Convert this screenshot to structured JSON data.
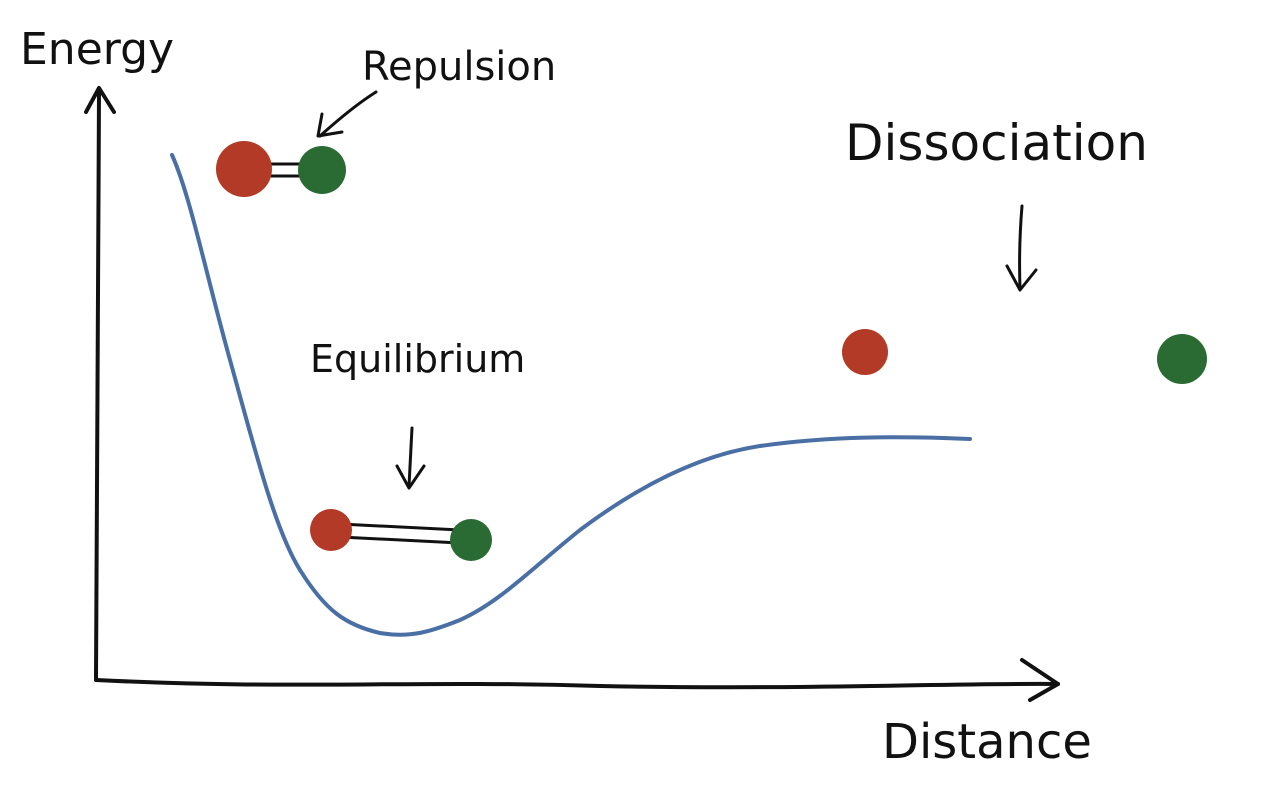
{
  "labels": {
    "y_axis": "Energy",
    "x_axis": "Distance",
    "repulsion": "Repulsion",
    "equilibrium": "Equilibrium",
    "dissociation": "Dissociation"
  },
  "colors": {
    "curve": "#4a6fa5",
    "atom_a": "#b23a26",
    "atom_b": "#2a6a33",
    "ink": "#111111",
    "background": "#ffffff"
  }
}
